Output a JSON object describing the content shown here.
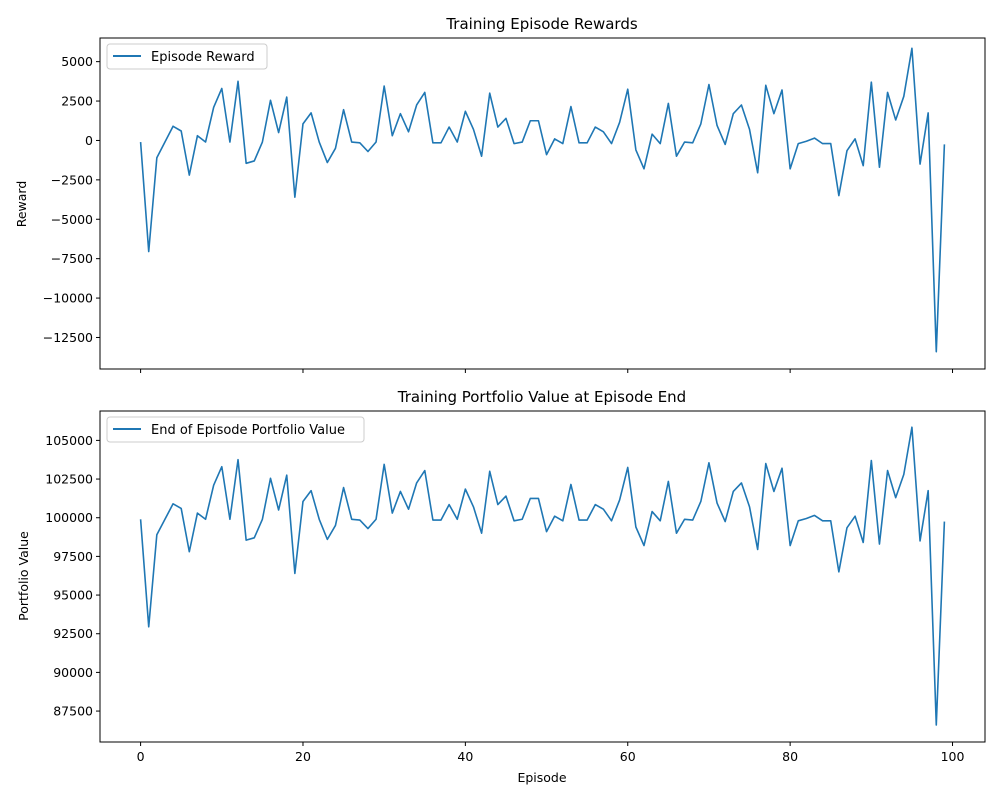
{
  "colors": {
    "line": "#1f77b4",
    "axes": "#000000",
    "legend_border": "#cccccc"
  },
  "chart_data": [
    {
      "type": "line",
      "title": "Training Episode Rewards",
      "xlabel": "",
      "ylabel": "Reward",
      "xlim": [
        -5,
        104
      ],
      "ylim": [
        -14500,
        6500
      ],
      "xticks": [
        0,
        20,
        40,
        60,
        80,
        100
      ],
      "xtick_labels": [],
      "yticks": [
        -12500,
        -10000,
        -7500,
        -5000,
        -2500,
        0,
        2500,
        5000
      ],
      "ytick_labels": [
        "−12500",
        "−10000",
        "−7500",
        "−5000",
        "−2500",
        "0",
        "2500",
        "5000"
      ],
      "legend": "top-left",
      "grid": false,
      "series": [
        {
          "name": "Episode Reward",
          "x": [
            0,
            1,
            2,
            3,
            4,
            5,
            6,
            7,
            8,
            9,
            10,
            11,
            12,
            13,
            14,
            15,
            16,
            17,
            18,
            19,
            20,
            21,
            22,
            23,
            24,
            25,
            26,
            27,
            28,
            29,
            30,
            31,
            32,
            33,
            34,
            35,
            36,
            37,
            38,
            39,
            40,
            41,
            42,
            43,
            44,
            45,
            46,
            47,
            48,
            49,
            50,
            51,
            52,
            53,
            54,
            55,
            56,
            57,
            58,
            59,
            60,
            61,
            62,
            63,
            64,
            65,
            66,
            67,
            68,
            69,
            70,
            71,
            72,
            73,
            74,
            75,
            76,
            77,
            78,
            79,
            80,
            81,
            82,
            83,
            84,
            85,
            86,
            87,
            88,
            89,
            90,
            91,
            92,
            93,
            94,
            95,
            96,
            97,
            98,
            99
          ],
          "values": [
            -100,
            -7050,
            -1100,
            -100,
            900,
            600,
            -2200,
            300,
            -100,
            2100,
            3300,
            -100,
            3750,
            -1450,
            -1300,
            -100,
            2550,
            500,
            2750,
            -3600,
            1050,
            1750,
            -100,
            -1400,
            -500,
            1950,
            -100,
            -150,
            -700,
            -100,
            3450,
            300,
            1700,
            550,
            2250,
            3050,
            -150,
            -150,
            850,
            -100,
            1850,
            700,
            -1000,
            3000,
            850,
            1400,
            -200,
            -100,
            1250,
            1250,
            -900,
            100,
            -200,
            2150,
            -150,
            -150,
            850,
            550,
            -200,
            1150,
            3250,
            -600,
            -1800,
            400,
            -200,
            2350,
            -1000,
            -100,
            -150,
            1050,
            3550,
            950,
            -250,
            1700,
            2250,
            700,
            -2050,
            3500,
            1700,
            3200,
            -1800,
            -200,
            -50,
            150,
            -200,
            -200,
            -3500,
            -650,
            100,
            -1600,
            3700,
            -1700,
            3050,
            1300,
            2800,
            5850,
            -1500,
            1750,
            -13400,
            -250
          ]
        }
      ]
    },
    {
      "type": "line",
      "title": "Training Portfolio Value at Episode End",
      "xlabel": "Episode",
      "ylabel": "Portfolio Value",
      "xlim": [
        -5,
        104
      ],
      "ylim": [
        85500,
        106900
      ],
      "xticks": [
        0,
        20,
        40,
        60,
        80,
        100
      ],
      "xtick_labels": [
        "0",
        "20",
        "40",
        "60",
        "80",
        "100"
      ],
      "yticks": [
        87500,
        90000,
        92500,
        95000,
        97500,
        100000,
        102500,
        105000
      ],
      "ytick_labels": [
        "87500",
        "90000",
        "92500",
        "95000",
        "97500",
        "100000",
        "102500",
        "105000"
      ],
      "legend": "top-left",
      "grid": false,
      "series": [
        {
          "name": "End of Episode Portfolio Value",
          "x": [
            0,
            1,
            2,
            3,
            4,
            5,
            6,
            7,
            8,
            9,
            10,
            11,
            12,
            13,
            14,
            15,
            16,
            17,
            18,
            19,
            20,
            21,
            22,
            23,
            24,
            25,
            26,
            27,
            28,
            29,
            30,
            31,
            32,
            33,
            34,
            35,
            36,
            37,
            38,
            39,
            40,
            41,
            42,
            43,
            44,
            45,
            46,
            47,
            48,
            49,
            50,
            51,
            52,
            53,
            54,
            55,
            56,
            57,
            58,
            59,
            60,
            61,
            62,
            63,
            64,
            65,
            66,
            67,
            68,
            69,
            70,
            71,
            72,
            73,
            74,
            75,
            76,
            77,
            78,
            79,
            80,
            81,
            82,
            83,
            84,
            85,
            86,
            87,
            88,
            89,
            90,
            91,
            92,
            93,
            94,
            95,
            96,
            97,
            98,
            99
          ],
          "values": [
            99900,
            92950,
            98900,
            99900,
            100900,
            100600,
            97800,
            100300,
            99900,
            102100,
            103300,
            99900,
            103750,
            98550,
            98700,
            99900,
            102550,
            100500,
            102750,
            96400,
            101050,
            101750,
            99900,
            98600,
            99500,
            101950,
            99900,
            99850,
            99300,
            99900,
            103450,
            100300,
            101700,
            100550,
            102250,
            103050,
            99850,
            99850,
            100850,
            99900,
            101850,
            100700,
            99000,
            103000,
            100850,
            101400,
            99800,
            99900,
            101250,
            101250,
            99100,
            100100,
            99800,
            102150,
            99850,
            99850,
            100850,
            100550,
            99800,
            101150,
            103250,
            99400,
            98200,
            100400,
            99800,
            102350,
            99000,
            99900,
            99850,
            101050,
            103550,
            100950,
            99750,
            101700,
            102250,
            100700,
            97950,
            103500,
            101700,
            103200,
            98200,
            99800,
            99950,
            100150,
            99800,
            99800,
            96500,
            99350,
            100100,
            98400,
            103700,
            98300,
            103050,
            101300,
            102800,
            105850,
            98500,
            101750,
            86600,
            99750
          ]
        }
      ]
    }
  ]
}
